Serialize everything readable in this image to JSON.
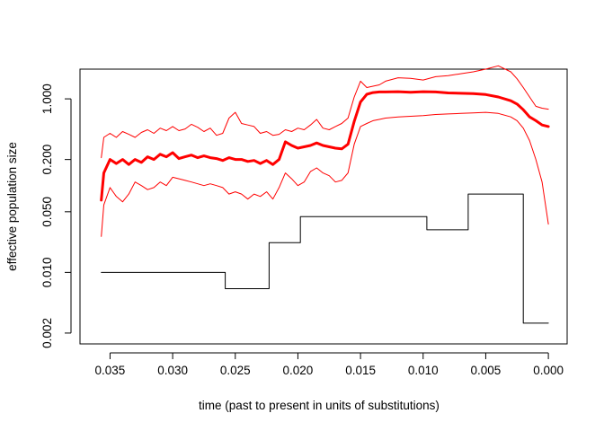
{
  "chart_data": {
    "type": "line",
    "title": "",
    "xlabel": "time (past to present in units of substitutions)",
    "ylabel": "effective population size",
    "xlim": [
      0.0374,
      -0.0015
    ],
    "ylim": [
      0.0015,
      2.2
    ],
    "yscale": "log",
    "grid": false,
    "xticks": [
      {
        "value": 0.035,
        "label": "0.035"
      },
      {
        "value": 0.03,
        "label": "0.030"
      },
      {
        "value": 0.025,
        "label": "0.025"
      },
      {
        "value": 0.02,
        "label": "0.020"
      },
      {
        "value": 0.015,
        "label": "0.015"
      },
      {
        "value": 0.01,
        "label": "0.010"
      },
      {
        "value": 0.005,
        "label": "0.005"
      },
      {
        "value": 0.0,
        "label": "0.000"
      }
    ],
    "yticks": [
      {
        "value": 0.002,
        "label": "0.002"
      },
      {
        "value": 0.01,
        "label": "0.010"
      },
      {
        "value": 0.05,
        "label": "0.050"
      },
      {
        "value": 0.2,
        "label": "0.200"
      },
      {
        "value": 1.0,
        "label": "1.000"
      }
    ],
    "series": [
      {
        "name": "upper",
        "color": "#ff0000",
        "width": 1,
        "x": [
          0.0357,
          0.0355,
          0.035,
          0.0345,
          0.034,
          0.0335,
          0.033,
          0.0325,
          0.032,
          0.0315,
          0.031,
          0.0305,
          0.03,
          0.0295,
          0.029,
          0.0285,
          0.028,
          0.0275,
          0.027,
          0.0265,
          0.026,
          0.0255,
          0.025,
          0.0245,
          0.024,
          0.0235,
          0.023,
          0.0225,
          0.022,
          0.0215,
          0.021,
          0.0205,
          0.02,
          0.0195,
          0.019,
          0.0185,
          0.018,
          0.0175,
          0.017,
          0.0165,
          0.016,
          0.0155,
          0.015,
          0.0145,
          0.014,
          0.0135,
          0.013,
          0.012,
          0.011,
          0.01,
          0.009,
          0.008,
          0.007,
          0.006,
          0.005,
          0.004,
          0.003,
          0.0025,
          0.002,
          0.0015,
          0.001,
          0.0005,
          0.0
        ],
        "y": [
          0.21,
          0.36,
          0.4,
          0.36,
          0.42,
          0.39,
          0.36,
          0.41,
          0.44,
          0.4,
          0.46,
          0.43,
          0.48,
          0.43,
          0.45,
          0.51,
          0.47,
          0.42,
          0.46,
          0.38,
          0.4,
          0.6,
          0.7,
          0.52,
          0.5,
          0.48,
          0.4,
          0.42,
          0.38,
          0.39,
          0.44,
          0.42,
          0.46,
          0.44,
          0.5,
          0.58,
          0.46,
          0.44,
          0.48,
          0.52,
          0.6,
          1.05,
          1.6,
          1.35,
          1.4,
          1.45,
          1.6,
          1.75,
          1.72,
          1.65,
          1.8,
          1.85,
          1.95,
          2.05,
          2.2,
          2.4,
          2.05,
          1.7,
          1.35,
          1.05,
          0.82,
          0.78,
          0.76
        ]
      },
      {
        "name": "median",
        "color": "#ff0000",
        "width": 3,
        "x": [
          0.0357,
          0.0355,
          0.035,
          0.0345,
          0.034,
          0.0335,
          0.033,
          0.0325,
          0.032,
          0.0315,
          0.031,
          0.0305,
          0.03,
          0.0295,
          0.029,
          0.0285,
          0.028,
          0.0275,
          0.027,
          0.0265,
          0.026,
          0.0255,
          0.025,
          0.0245,
          0.024,
          0.0235,
          0.023,
          0.0225,
          0.022,
          0.0215,
          0.021,
          0.0205,
          0.02,
          0.0195,
          0.019,
          0.0185,
          0.018,
          0.0175,
          0.017,
          0.0165,
          0.016,
          0.0155,
          0.015,
          0.0145,
          0.014,
          0.0135,
          0.013,
          0.012,
          0.011,
          0.01,
          0.009,
          0.008,
          0.007,
          0.006,
          0.005,
          0.004,
          0.003,
          0.0025,
          0.002,
          0.0015,
          0.001,
          0.0005,
          0.0
        ],
        "y": [
          0.068,
          0.14,
          0.2,
          0.18,
          0.2,
          0.175,
          0.2,
          0.185,
          0.215,
          0.2,
          0.23,
          0.215,
          0.24,
          0.205,
          0.215,
          0.225,
          0.21,
          0.22,
          0.21,
          0.205,
          0.195,
          0.21,
          0.2,
          0.2,
          0.19,
          0.195,
          0.18,
          0.195,
          0.175,
          0.2,
          0.32,
          0.29,
          0.27,
          0.28,
          0.29,
          0.31,
          0.29,
          0.28,
          0.27,
          0.265,
          0.3,
          0.55,
          0.92,
          1.13,
          1.18,
          1.2,
          1.2,
          1.21,
          1.19,
          1.21,
          1.2,
          1.17,
          1.16,
          1.15,
          1.12,
          1.05,
          0.95,
          0.87,
          0.75,
          0.62,
          0.56,
          0.5,
          0.48
        ]
      },
      {
        "name": "lower",
        "color": "#ff0000",
        "width": 1,
        "x": [
          0.0357,
          0.0355,
          0.035,
          0.0345,
          0.034,
          0.0335,
          0.033,
          0.0325,
          0.032,
          0.0315,
          0.031,
          0.0305,
          0.03,
          0.0295,
          0.029,
          0.0285,
          0.028,
          0.0275,
          0.027,
          0.0265,
          0.026,
          0.0255,
          0.025,
          0.0245,
          0.024,
          0.0235,
          0.023,
          0.0225,
          0.022,
          0.0215,
          0.021,
          0.0205,
          0.02,
          0.0195,
          0.019,
          0.0185,
          0.018,
          0.0175,
          0.017,
          0.0165,
          0.016,
          0.0155,
          0.015,
          0.0145,
          0.014,
          0.0135,
          0.013,
          0.012,
          0.011,
          0.01,
          0.009,
          0.008,
          0.007,
          0.006,
          0.005,
          0.004,
          0.003,
          0.0025,
          0.002,
          0.0015,
          0.001,
          0.0005,
          0.0
        ],
        "y": [
          0.026,
          0.06,
          0.095,
          0.075,
          0.065,
          0.08,
          0.11,
          0.1,
          0.09,
          0.095,
          0.11,
          0.1,
          0.125,
          0.12,
          0.115,
          0.11,
          0.105,
          0.1,
          0.105,
          0.1,
          0.095,
          0.08,
          0.085,
          0.08,
          0.07,
          0.08,
          0.075,
          0.085,
          0.07,
          0.095,
          0.14,
          0.12,
          0.1,
          0.11,
          0.145,
          0.16,
          0.14,
          0.13,
          0.11,
          0.115,
          0.14,
          0.3,
          0.48,
          0.52,
          0.56,
          0.58,
          0.6,
          0.62,
          0.63,
          0.64,
          0.66,
          0.67,
          0.68,
          0.69,
          0.7,
          0.68,
          0.62,
          0.56,
          0.46,
          0.33,
          0.2,
          0.11,
          0.036
        ]
      },
      {
        "name": "step",
        "color": "#000000",
        "width": 1,
        "step": true,
        "x": [
          0.0357,
          0.0258,
          0.0258,
          0.0223,
          0.0223,
          0.0198,
          0.0198,
          0.0097,
          0.0097,
          0.0064,
          0.0064,
          0.002,
          0.002,
          0.0
        ],
        "y": [
          0.01,
          0.01,
          0.0065,
          0.0065,
          0.022,
          0.022,
          0.044,
          0.044,
          0.031,
          0.031,
          0.08,
          0.08,
          0.0026,
          0.0026
        ]
      }
    ]
  }
}
